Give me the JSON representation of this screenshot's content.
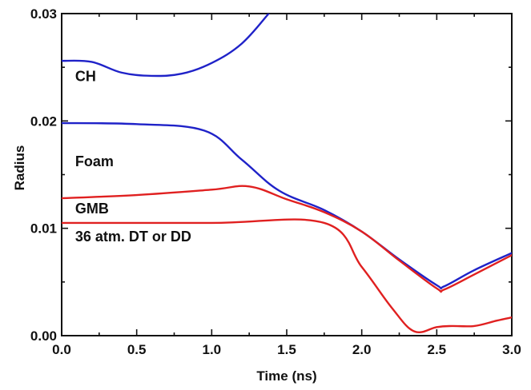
{
  "chart_data": {
    "type": "line",
    "title": "",
    "xlabel": "Time (ns)",
    "ylabel": "Radius",
    "xlim": [
      0.0,
      3.0
    ],
    "ylim": [
      0.0,
      0.03
    ],
    "x_ticks": [
      "0.0",
      "0.5",
      "1.0",
      "1.5",
      "2.0",
      "2.5",
      "3.0"
    ],
    "y_ticks": [
      "0.00",
      "0.01",
      "0.02",
      "0.03"
    ],
    "grid": false,
    "annotations": [
      {
        "text": "CH",
        "x": 0.09,
        "y": 0.0237
      },
      {
        "text": "Foam",
        "x": 0.09,
        "y": 0.0158
      },
      {
        "text": "GMB",
        "x": 0.09,
        "y": 0.0114
      },
      {
        "text": "36 atm. DT or DD",
        "x": 0.09,
        "y": 0.0088
      }
    ],
    "series": [
      {
        "color": "#1f22c8",
        "points": [
          [
            0,
            0.0256
          ],
          [
            0.2,
            0.0255
          ],
          [
            0.4,
            0.0245
          ],
          [
            0.6,
            0.0242
          ],
          [
            0.8,
            0.0244
          ],
          [
            1.0,
            0.0254
          ],
          [
            1.2,
            0.0272
          ],
          [
            1.38,
            0.03
          ]
        ]
      },
      {
        "color": "#1f22c8",
        "points": [
          [
            0,
            0.0198
          ],
          [
            0.5,
            0.0197
          ],
          [
            0.95,
            0.0191
          ],
          [
            1.2,
            0.0164
          ],
          [
            1.45,
            0.0135
          ],
          [
            1.75,
            0.0117
          ],
          [
            2.0,
            0.0097
          ],
          [
            2.25,
            0.0071
          ],
          [
            2.5,
            0.0047
          ],
          [
            2.55,
            0.0046
          ],
          [
            2.75,
            0.0061
          ],
          [
            3.0,
            0.0077
          ]
        ]
      },
      {
        "color": "#e02020",
        "points": [
          [
            0,
            0.0128
          ],
          [
            0.5,
            0.0131
          ],
          [
            1.0,
            0.0136
          ],
          [
            1.25,
            0.0139
          ],
          [
            1.5,
            0.0127
          ],
          [
            1.75,
            0.0115
          ],
          [
            2.0,
            0.0097
          ],
          [
            2.25,
            0.007
          ],
          [
            2.5,
            0.0044
          ],
          [
            2.55,
            0.0043
          ],
          [
            2.75,
            0.0057
          ],
          [
            3.0,
            0.0075
          ]
        ]
      },
      {
        "color": "#e02020",
        "points": [
          [
            0,
            0.0105
          ],
          [
            1.0,
            0.0105
          ],
          [
            1.75,
            0.0105
          ],
          [
            2.0,
            0.0064
          ],
          [
            2.2,
            0.0026
          ],
          [
            2.35,
            0.0004
          ],
          [
            2.5,
            0.0008
          ],
          [
            2.6,
            0.0009
          ],
          [
            2.75,
            0.0009
          ],
          [
            2.9,
            0.0014
          ],
          [
            3.0,
            0.0017
          ]
        ]
      }
    ]
  }
}
